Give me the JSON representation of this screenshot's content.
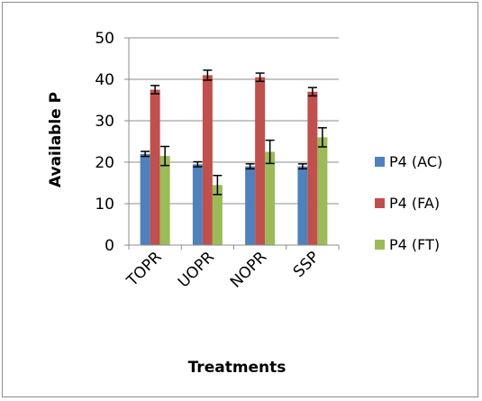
{
  "chart_data": {
    "type": "bar",
    "title": "",
    "xlabel": "Treatments",
    "ylabel": "Available P",
    "ylim": [
      0,
      50
    ],
    "yticks": [
      0,
      10,
      20,
      30,
      40,
      50
    ],
    "grid": true,
    "legend_position": "right",
    "categories": [
      "TOPR",
      "UOPR",
      "NOPR",
      "SSP"
    ],
    "series": [
      {
        "name": "P4 (AC)",
        "color": "#4f81bd",
        "values": [
          22,
          19.5,
          19,
          19
        ],
        "errors": [
          0.6,
          0.6,
          0.6,
          0.6
        ]
      },
      {
        "name": "P4 (FA)",
        "color": "#c0504d",
        "values": [
          37.5,
          41,
          40.5,
          37
        ],
        "errors": [
          1.0,
          1.2,
          1.0,
          1.0
        ]
      },
      {
        "name": "P4 (FT)",
        "color": "#9bbb59",
        "values": [
          21.5,
          14.5,
          22.5,
          26
        ],
        "errors": [
          2.3,
          2.3,
          2.8,
          2.3
        ]
      }
    ]
  }
}
